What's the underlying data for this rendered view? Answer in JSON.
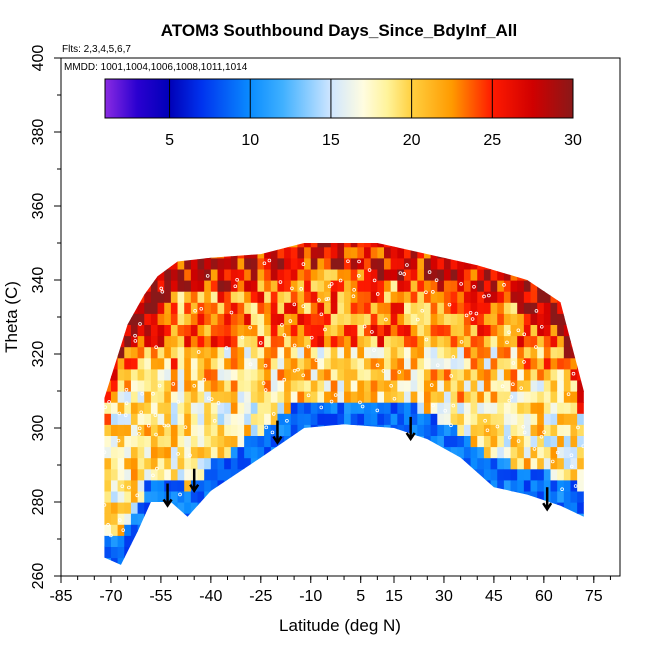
{
  "chart_data": {
    "type": "heatmap",
    "title": "ATOM3 Southbound Days_Since_BdyInf_All",
    "subtitle_flights": "Flts: 2,3,4,5,6,7",
    "subtitle_dates": "MMDD: 1001,1004,1006,1008,1011,1014",
    "xlabel": "Latitude (deg N)",
    "ylabel": "Theta (C)",
    "xlim": [
      -85,
      85
    ],
    "ylim": [
      260,
      400
    ],
    "xticks": [
      -85,
      -70,
      -55,
      -40,
      -25,
      -10,
      5,
      15,
      30,
      45,
      60,
      75
    ],
    "xtick_labels": [
      "-85",
      "-70",
      "-55",
      "-40",
      "-25",
      "-10",
      "5",
      "15",
      "30",
      "45",
      "60",
      "75"
    ],
    "yticks": [
      260,
      280,
      300,
      320,
      340,
      360,
      380,
      400
    ],
    "ytick_labels": [
      "260",
      "280",
      "300",
      "320",
      "340",
      "360",
      "380",
      "400"
    ],
    "colorbar": {
      "range": [
        1,
        30
      ],
      "ticks": [
        5,
        10,
        15,
        20,
        25,
        30
      ],
      "tick_labels": [
        "5",
        "10",
        "15",
        "20",
        "25",
        "30"
      ],
      "colors": [
        {
          "v": 1,
          "c": "#8a2be2"
        },
        {
          "v": 3,
          "c": "#2a00d0"
        },
        {
          "v": 5,
          "c": "#0000b8"
        },
        {
          "v": 7,
          "c": "#0033ee"
        },
        {
          "v": 10,
          "c": "#0a8cff"
        },
        {
          "v": 12,
          "c": "#3fb0ff"
        },
        {
          "v": 15,
          "c": "#cfe6ff"
        },
        {
          "v": 17,
          "c": "#fffce0"
        },
        {
          "v": 18.5,
          "c": "#fff39a"
        },
        {
          "v": 20,
          "c": "#ffd040"
        },
        {
          "v": 22.5,
          "c": "#ff9a00"
        },
        {
          "v": 25,
          "c": "#ff1a00"
        },
        {
          "v": 27.5,
          "c": "#d00000"
        },
        {
          "v": 30,
          "c": "#8a1818"
        }
      ]
    },
    "coverage_top_theta": [
      {
        "lat": -72,
        "theta": 308
      },
      {
        "lat": -65,
        "theta": 328
      },
      {
        "lat": -60,
        "theta": 336
      },
      {
        "lat": -56,
        "theta": 341
      },
      {
        "lat": -50,
        "theta": 345
      },
      {
        "lat": -40,
        "theta": 346
      },
      {
        "lat": -25,
        "theta": 347
      },
      {
        "lat": -12,
        "theta": 350
      },
      {
        "lat": 10,
        "theta": 350
      },
      {
        "lat": 25,
        "theta": 347
      },
      {
        "lat": 40,
        "theta": 344
      },
      {
        "lat": 55,
        "theta": 340
      },
      {
        "lat": 65,
        "theta": 334
      },
      {
        "lat": 72,
        "theta": 310
      }
    ],
    "coverage_bottom_theta": [
      {
        "lat": -72,
        "theta": 265
      },
      {
        "lat": -67,
        "theta": 263
      },
      {
        "lat": -62,
        "theta": 272
      },
      {
        "lat": -58,
        "theta": 280
      },
      {
        "lat": -52,
        "theta": 280
      },
      {
        "lat": -47,
        "theta": 276
      },
      {
        "lat": -40,
        "theta": 283
      },
      {
        "lat": -25,
        "theta": 292
      },
      {
        "lat": -12,
        "theta": 300
      },
      {
        "lat": 0,
        "theta": 301
      },
      {
        "lat": 15,
        "theta": 300
      },
      {
        "lat": 25,
        "theta": 297
      },
      {
        "lat": 35,
        "theta": 292
      },
      {
        "lat": 45,
        "theta": 284
      },
      {
        "lat": 55,
        "theta": 282
      },
      {
        "lat": 65,
        "theta": 279
      },
      {
        "lat": 72,
        "theta": 276
      }
    ],
    "field_bands": [
      {
        "name": "upper",
        "theta_min": 320,
        "theta_max": 350,
        "value": 22.5
      },
      {
        "name": "middle",
        "theta_min": 305,
        "theta_max": 320,
        "value": 19.5
      },
      {
        "name": "lower",
        "theta_min": 260,
        "theta_max": 305,
        "value": 18.5
      },
      {
        "name": "near_tropopause_floor",
        "theta_offset": 6,
        "value": 9
      }
    ],
    "arrows": [
      {
        "lat": -53,
        "theta": 285
      },
      {
        "lat": -45,
        "theta": 289
      },
      {
        "lat": -20,
        "theta": 302
      },
      {
        "lat": 20,
        "theta": 303
      },
      {
        "lat": 61,
        "theta": 284
      }
    ]
  }
}
